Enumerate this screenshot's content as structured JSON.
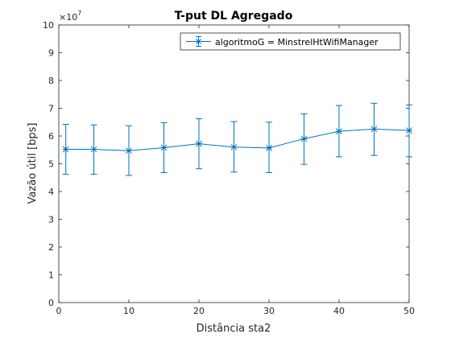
{
  "chart_data": {
    "type": "line",
    "title": "T-put DL Agregado",
    "xlabel": "Distância sta2",
    "ylabel": "Vazão útil [bps]",
    "y_exponent_label": "×10",
    "y_exponent_power": "7",
    "xlim": [
      0,
      50
    ],
    "ylim": [
      0,
      10
    ],
    "x_ticks": [
      0,
      10,
      20,
      30,
      40,
      50
    ],
    "y_ticks": [
      0,
      1,
      2,
      3,
      4,
      5,
      6,
      7,
      8,
      9,
      10
    ],
    "grid": false,
    "legend_position": "top-right",
    "colors": {
      "series": "#0072BD",
      "axis": "#262626"
    },
    "series": [
      {
        "name": "algoritmoG = MinstrelHtWifiManager",
        "x": [
          1,
          5,
          10,
          15,
          20,
          25,
          30,
          35,
          40,
          45,
          50
        ],
        "y": [
          5.52,
          5.52,
          5.47,
          5.58,
          5.72,
          5.6,
          5.57,
          5.9,
          6.17,
          6.25,
          6.2
        ],
        "err_low": [
          4.62,
          4.62,
          4.58,
          4.68,
          4.82,
          4.7,
          4.68,
          4.98,
          5.25,
          5.3,
          5.25
        ],
        "err_high": [
          6.42,
          6.4,
          6.37,
          6.48,
          6.62,
          6.52,
          6.5,
          6.8,
          7.1,
          7.18,
          7.12
        ]
      }
    ]
  }
}
